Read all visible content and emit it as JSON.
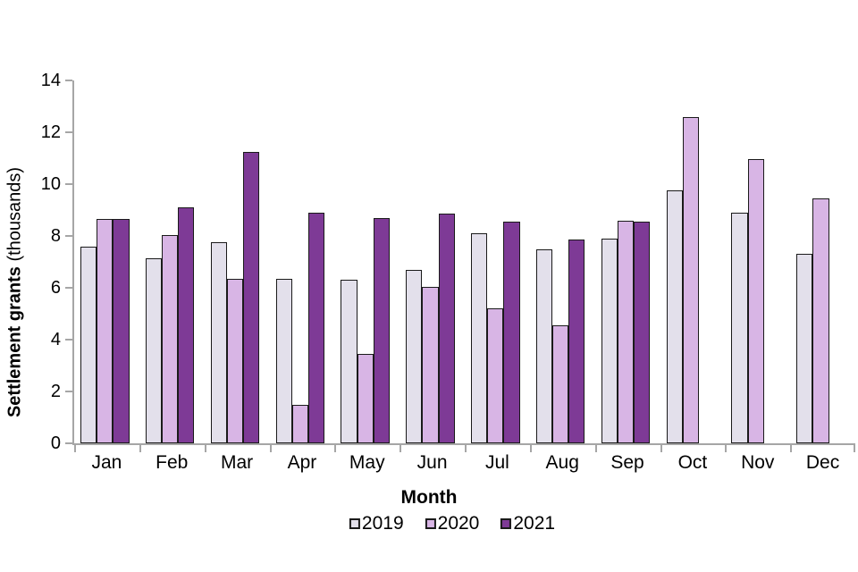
{
  "chart_data": {
    "type": "bar",
    "title": "",
    "categories": [
      "Jan",
      "Feb",
      "Mar",
      "Apr",
      "May",
      "Jun",
      "Jul",
      "Aug",
      "Sep",
      "Oct",
      "Nov",
      "Dec"
    ],
    "series": [
      {
        "name": "2019",
        "color": "#e3e0eb",
        "values": [
          7.6,
          7.15,
          7.75,
          6.35,
          6.3,
          6.7,
          8.1,
          7.5,
          7.9,
          9.75,
          8.9,
          7.3
        ]
      },
      {
        "name": "2020",
        "color": "#d8b5e5",
        "values": [
          8.65,
          8.05,
          6.35,
          1.5,
          3.45,
          6.05,
          5.2,
          4.55,
          8.6,
          12.6,
          10.95,
          9.45
        ]
      },
      {
        "name": "2021",
        "color": "#7e3a96",
        "values": [
          8.65,
          9.1,
          11.25,
          8.9,
          8.7,
          8.85,
          8.55,
          7.85,
          8.55,
          null,
          null,
          null
        ]
      }
    ],
    "xlabel": "Month",
    "ylabel_bold": "Settlement grants",
    "ylabel_regular": " (thousands)",
    "ylim": [
      0,
      14
    ],
    "yticks": [
      0,
      2,
      4,
      6,
      8,
      10,
      12,
      14
    ],
    "grid": false,
    "legend_position": "bottom",
    "colors": {
      "axis": "#a6a6a6",
      "bar_border": "#1a1a1a",
      "text": "#000000",
      "background": "#ffffff"
    }
  }
}
